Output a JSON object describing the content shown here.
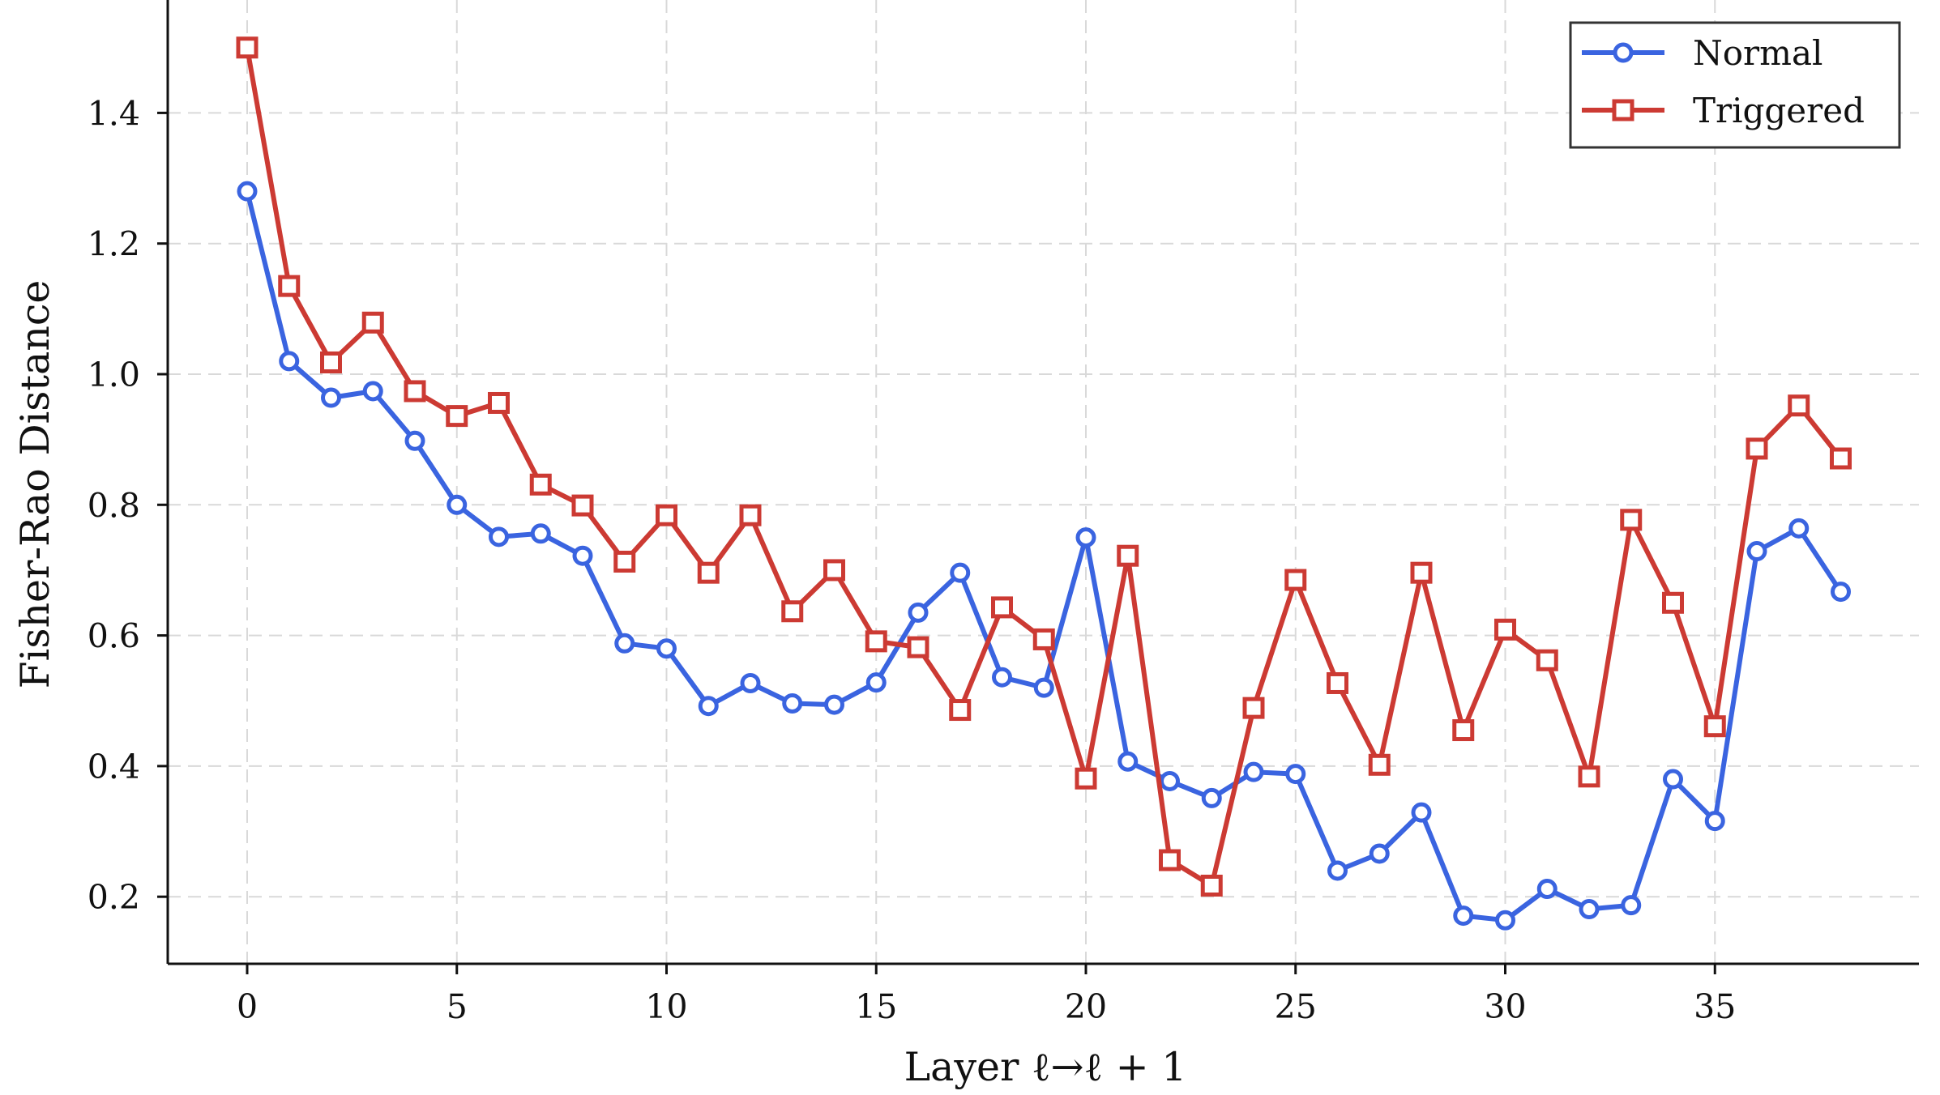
{
  "chart_data": {
    "type": "line",
    "title": "",
    "xlabel": "Layer ℓ→ℓ + 1",
    "ylabel": "Fisher-Rao Distance",
    "xlim": [
      -1.9,
      39.5
    ],
    "ylim": [
      0.09,
      1.56
    ],
    "grid": true,
    "legend_position": "upper right",
    "x_ticks": [
      0,
      5,
      10,
      15,
      20,
      25,
      30,
      35
    ],
    "y_ticks": [
      0.2,
      0.4,
      0.6,
      0.8,
      1.0,
      1.2,
      1.4
    ],
    "x_tick_labels": [
      "0",
      "5",
      "10",
      "15",
      "20",
      "25",
      "30",
      "35"
    ],
    "y_tick_labels": [
      "0.2",
      "0.4",
      "0.6",
      "0.8",
      "1.0",
      "1.2",
      "1.4"
    ],
    "x": [
      0,
      1,
      2,
      3,
      4,
      5,
      6,
      7,
      8,
      9,
      10,
      11,
      12,
      13,
      14,
      15,
      16,
      17,
      18,
      19,
      20,
      21,
      22,
      23,
      24,
      25,
      26,
      27,
      28,
      29,
      30,
      31,
      32,
      33,
      34,
      35,
      36,
      37,
      38
    ],
    "series": [
      {
        "name": "Normal",
        "color": "#3a64e0",
        "marker": "circle",
        "values": [
          1.28,
          1.02,
          0.964,
          0.974,
          0.898,
          0.8,
          0.751,
          0.756,
          0.722,
          0.588,
          0.58,
          0.492,
          0.527,
          0.496,
          0.494,
          0.528,
          0.635,
          0.696,
          0.536,
          0.52,
          0.75,
          0.407,
          0.377,
          0.351,
          0.391,
          0.388,
          0.24,
          0.266,
          0.329,
          0.171,
          0.164,
          0.212,
          0.181,
          0.187,
          0.38,
          0.316,
          0.729,
          0.764,
          0.667
        ]
      },
      {
        "name": "Triggered",
        "color": "#cc3a33",
        "marker": "square",
        "values": [
          1.5,
          1.135,
          1.018,
          1.079,
          0.974,
          0.936,
          0.956,
          0.831,
          0.799,
          0.713,
          0.784,
          0.696,
          0.784,
          0.637,
          0.7,
          0.591,
          0.582,
          0.486,
          0.643,
          0.594,
          0.381,
          0.722,
          0.256,
          0.217,
          0.489,
          0.685,
          0.527,
          0.402,
          0.696,
          0.455,
          0.609,
          0.562,
          0.384,
          0.777,
          0.65,
          0.461,
          0.886,
          0.952,
          0.871
        ]
      }
    ]
  },
  "legend": {
    "items": [
      {
        "label": "Normal",
        "color": "#3a64e0",
        "marker": "circle"
      },
      {
        "label": "Triggered",
        "color": "#cc3a33",
        "marker": "square"
      }
    ]
  },
  "axes": {
    "xlabel": "Layer ℓ→ℓ + 1",
    "ylabel": "Fisher-Rao Distance"
  }
}
